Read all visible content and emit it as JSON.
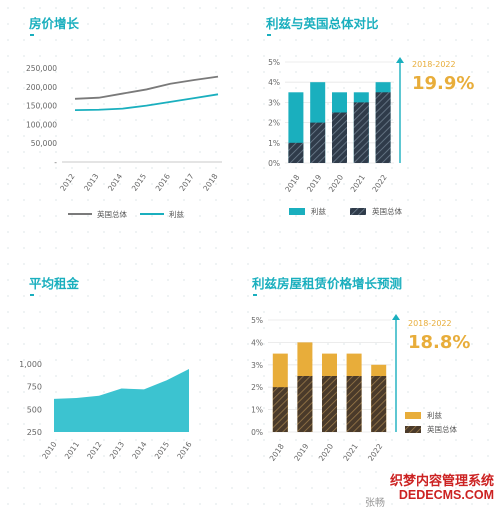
{
  "chart_data": [
    {
      "type": "line",
      "title": "房价增长",
      "x": [
        "2012",
        "2013",
        "2014",
        "2015",
        "2016",
        "2017",
        "2018"
      ],
      "y_ticks": [
        "250,000",
        "200,000",
        "150,000",
        "100,000",
        "50,000",
        "-"
      ],
      "ylim": [
        0,
        250000
      ],
      "series": [
        {
          "name": "英国总体",
          "color": "#7a7a7a",
          "values": [
            168000,
            171000,
            182000,
            193000,
            208000,
            218000,
            227000
          ]
        },
        {
          "name": "利兹",
          "color": "#1aafbe",
          "values": [
            138000,
            139000,
            142000,
            150000,
            160000,
            170000,
            180000
          ]
        }
      ]
    },
    {
      "type": "bar",
      "title": "利兹与英国总体对比",
      "categories": [
        "2018",
        "2019",
        "2020",
        "2021",
        "2022"
      ],
      "y_ticks": [
        "5%",
        "4%",
        "3%",
        "2%",
        "1%",
        "0%"
      ],
      "ylim": [
        0,
        5
      ],
      "series": [
        {
          "name": "利兹",
          "color": "#1aafbe",
          "values": [
            3.5,
            4.0,
            3.5,
            3.5,
            4.0
          ]
        },
        {
          "name": "英国总体",
          "color": "#2f3b4a",
          "values": [
            1.0,
            2.0,
            2.5,
            3.0,
            3.5
          ]
        }
      ],
      "annotation": {
        "period": "2018-2022",
        "value": "19.9%"
      }
    },
    {
      "type": "area",
      "title": "平均租金",
      "x": [
        "2010",
        "2011",
        "2012",
        "2013",
        "2014",
        "2015",
        "2016"
      ],
      "y_ticks": [
        "1,000",
        "750",
        "500",
        "250"
      ],
      "ylim": [
        250,
        1000
      ],
      "series": [
        {
          "name": "",
          "color": "#3cc3d0",
          "values": [
            615,
            625,
            650,
            730,
            720,
            820,
            945
          ]
        }
      ]
    },
    {
      "type": "bar",
      "title": "利兹房屋租赁价格增长预测",
      "categories": [
        "2018",
        "2019",
        "2020",
        "2021",
        "2022"
      ],
      "y_ticks": [
        "5%",
        "4%",
        "3%",
        "2%",
        "1%",
        "0%"
      ],
      "ylim": [
        0,
        5
      ],
      "series": [
        {
          "name": "利兹",
          "color": "#e8ad3a",
          "values": [
            3.5,
            4.0,
            3.5,
            3.5,
            3.0
          ]
        },
        {
          "name": "英国总体",
          "color": "#4a3a2a",
          "values": [
            2.0,
            2.5,
            2.5,
            2.5,
            2.5
          ]
        }
      ],
      "annotation": {
        "period": "2018-2022",
        "value": "18.8%"
      }
    }
  ],
  "watermark": {
    "line1": "织梦内容管理系统",
    "line2": "DEDECMS.COM",
    "line3": "张畅"
  }
}
